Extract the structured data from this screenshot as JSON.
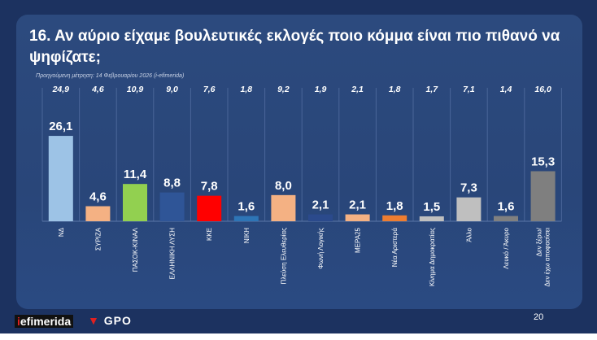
{
  "title": "16. Αν αύριο είχαμε βουλευτικές εκλογές ποιο κόμμα είναι πιο πιθανό να ψηφίζατε;",
  "previous_label": "Προηγούμενη μέτρηση: 14 Φεβρουαρίου 2026 (i-efimerida)",
  "page_number": "20",
  "logo": {
    "brand": "iefimerida",
    "brand_i": "i",
    "brand_rest": "efimerida",
    "partner": "GPO"
  },
  "chart_data": {
    "type": "bar",
    "title": "16. Αν αύριο είχαμε βουλευτικές εκλογές ποιο κόμμα είναι πιο πιθανό να ψηφίζατε;",
    "ylim": [
      0,
      30
    ],
    "categories": [
      "ΝΔ",
      "ΣΥΡΙΖΑ",
      "ΠΑΣΟΚ-ΚΙΝΑΛ",
      "ΕΛΛΗΝΙΚΗ ΛΥΣΗ",
      "ΚΚΕ",
      "ΝΙΚΗ",
      "Πλεύση Ελευθερίας",
      "Φωνή Λογικής",
      "ΜΕΡΑ25",
      "Νέα Αριστερά",
      "Κίνημα Δημοκρατίας",
      "Άλλο",
      "Λευκό / Άκυρο",
      "Δεν ξέρω/ Δεν έχω αποφασίσει"
    ],
    "values": [
      26.1,
      4.6,
      11.4,
      8.8,
      7.8,
      1.6,
      8.0,
      2.1,
      2.1,
      1.8,
      1.5,
      7.3,
      1.6,
      15.3
    ],
    "value_labels": [
      "26,1",
      "4,6",
      "11,4",
      "8,8",
      "7,8",
      "1,6",
      "8,0",
      "2,1",
      "2,1",
      "1,8",
      "1,5",
      "7,3",
      "1,6",
      "15,3"
    ],
    "previous_values": [
      24.9,
      4.6,
      10.9,
      9.0,
      7.6,
      1.8,
      9.2,
      1.9,
      2.1,
      1.8,
      1.7,
      7.1,
      1.4,
      16.0
    ],
    "previous_labels": [
      "24,9",
      "4,6",
      "10,9",
      "9,0",
      "7,6",
      "1,8",
      "9,2",
      "1,9",
      "2,1",
      "1,8",
      "1,7",
      "7,1",
      "1,4",
      "16,0"
    ],
    "colors": [
      "#9dc3e6",
      "#f4b183",
      "#92d050",
      "#2f5597",
      "#ff0000",
      "#2e75b6",
      "#f4b183",
      "#2b4a8c",
      "#f4b183",
      "#ed7d31",
      "#bfbfbf",
      "#bfbfbf",
      "#808080",
      "#7f7f7f"
    ]
  }
}
